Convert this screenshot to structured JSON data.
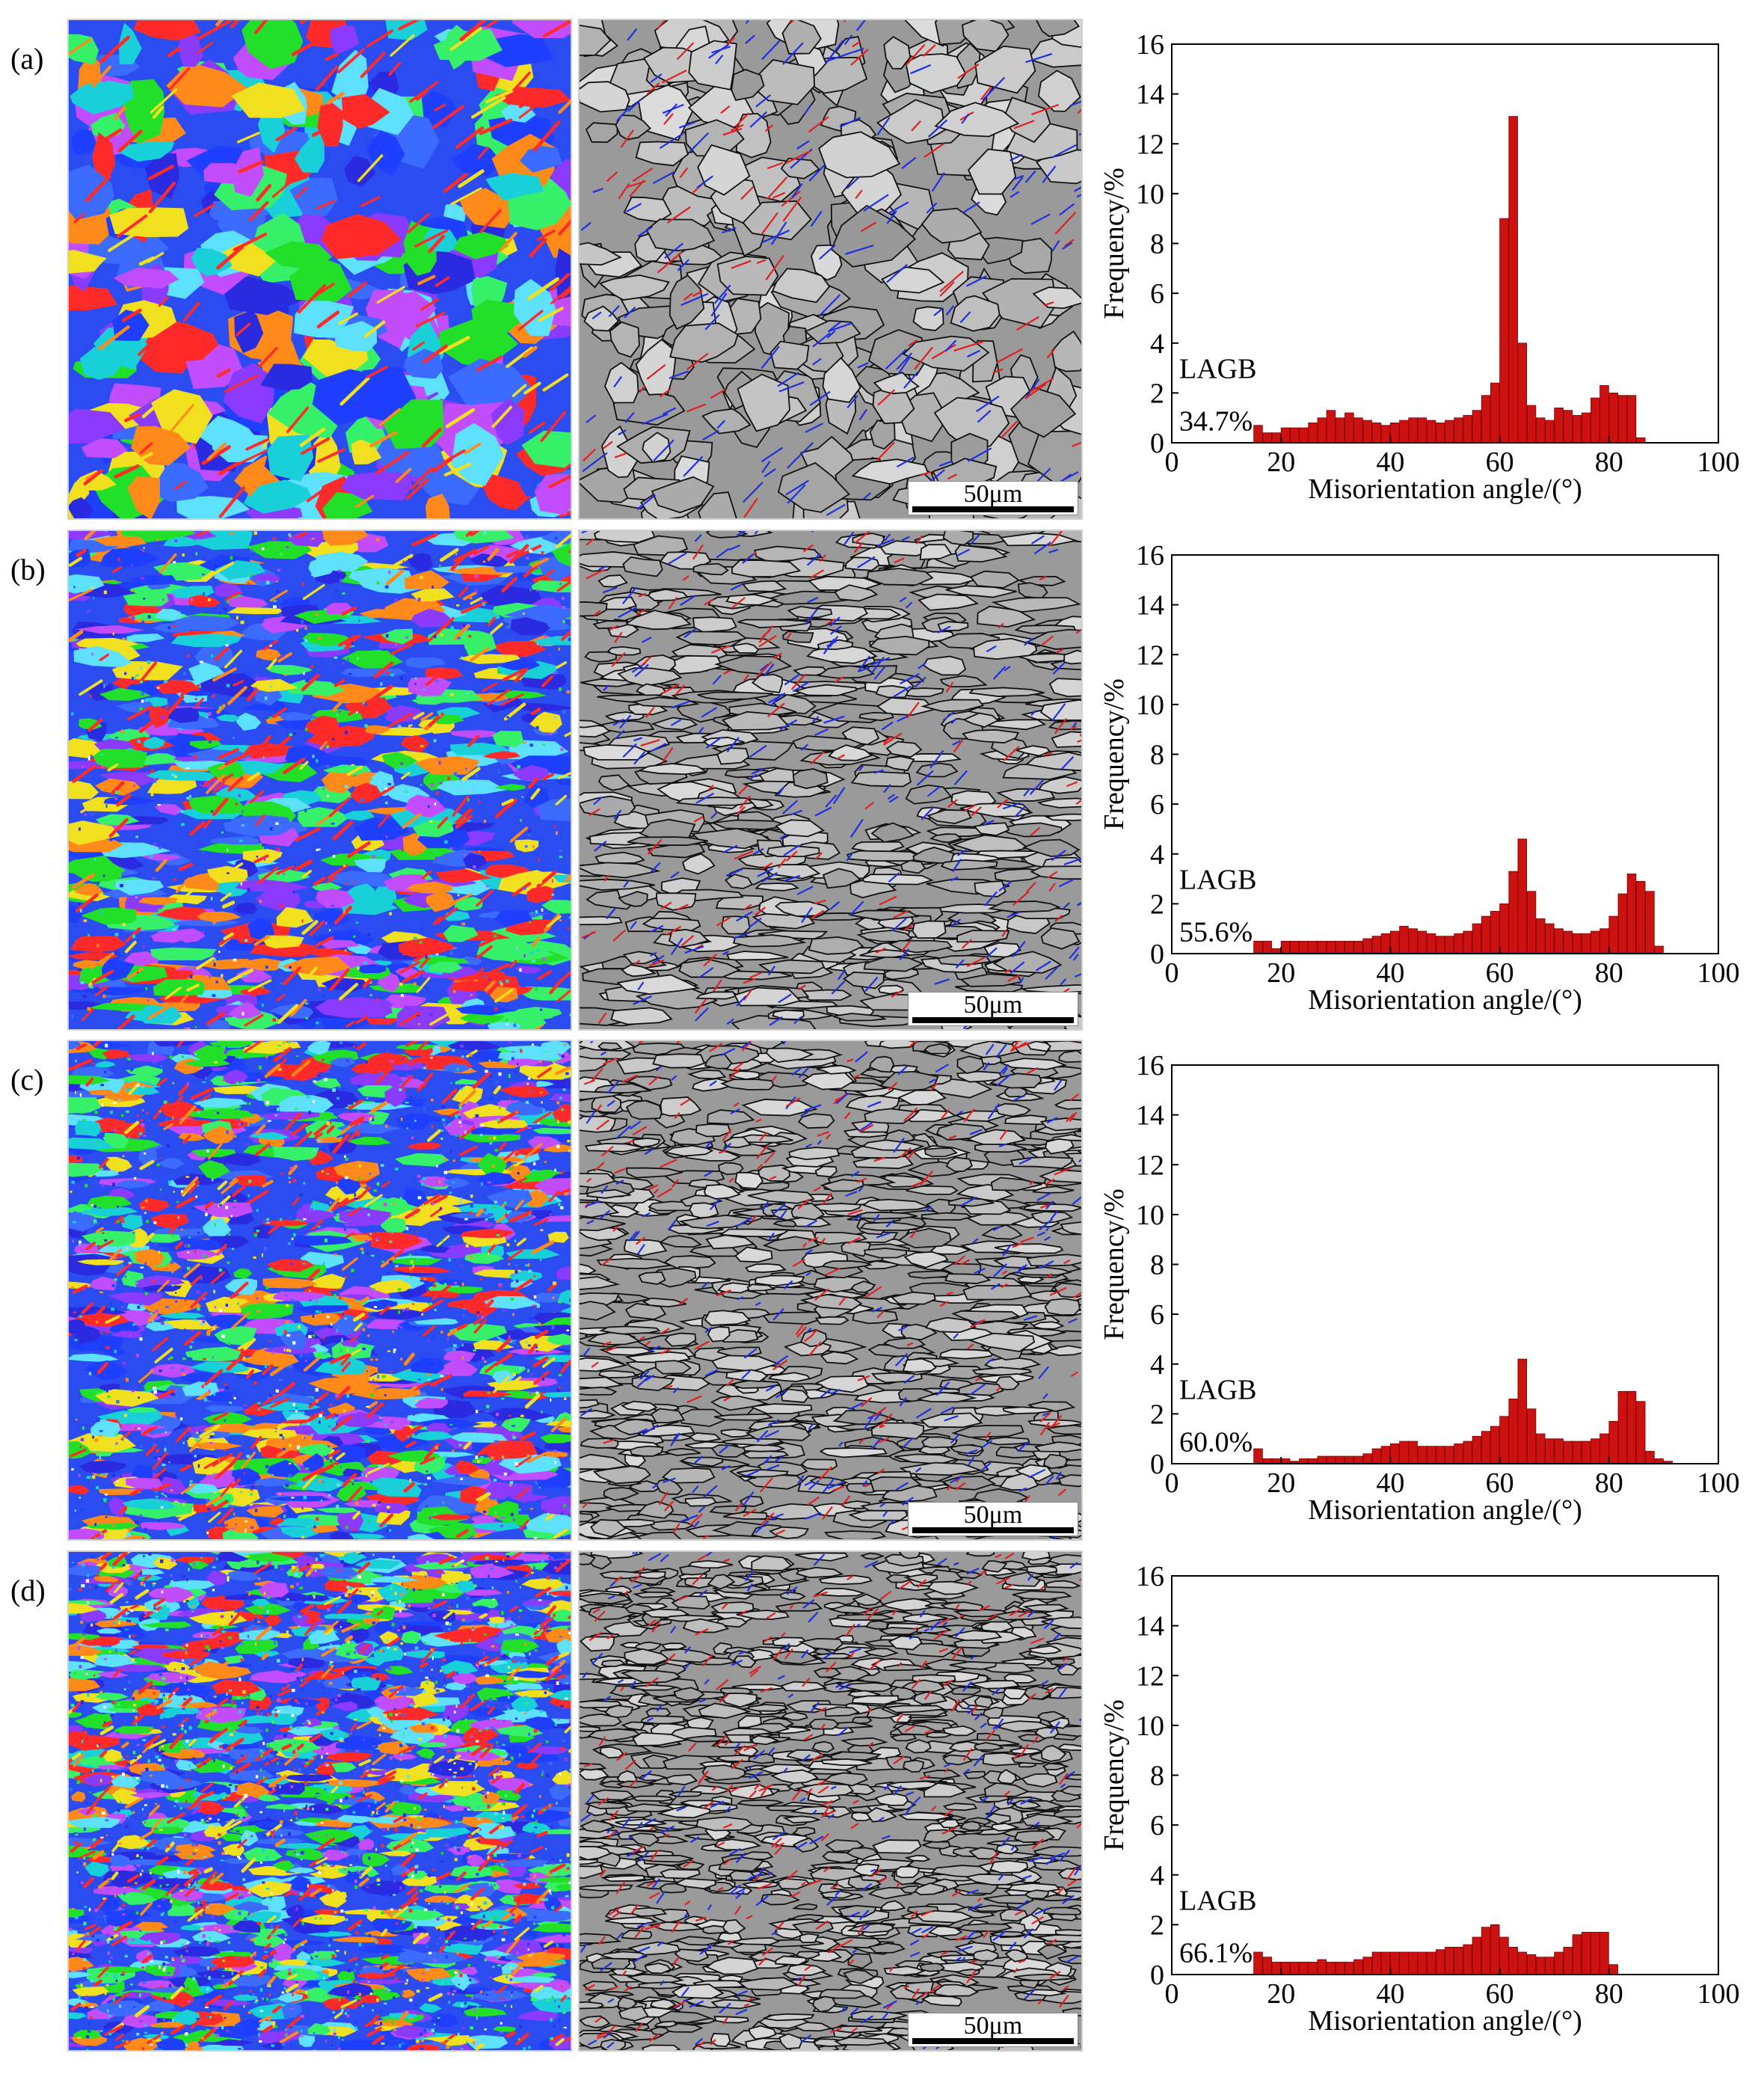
{
  "figure": {
    "panels": [
      {
        "label": "(a)",
        "scale_bar": "50μm",
        "lagb_title": "LAGB",
        "lagb_value": "34.7%",
        "seed": 11,
        "ipf_grain_scale": 1.0,
        "gray_grain_scale": 1.0
      },
      {
        "label": "(b)",
        "scale_bar": "50μm",
        "lagb_title": "LAGB",
        "lagb_value": "55.6%",
        "seed": 23,
        "ipf_grain_scale": 0.7,
        "gray_grain_scale": 0.7
      },
      {
        "label": "(c)",
        "scale_bar": "50μm",
        "lagb_title": "LAGB",
        "lagb_value": "60.0%",
        "seed": 37,
        "ipf_grain_scale": 0.6,
        "gray_grain_scale": 0.6
      },
      {
        "label": "(d)",
        "scale_bar": "50μm",
        "lagb_title": "LAGB",
        "lagb_value": "66.1%",
        "seed": 53,
        "ipf_grain_scale": 0.5,
        "gray_grain_scale": 0.5
      }
    ]
  },
  "colors": {
    "bar_fill": "#cc1111",
    "bar_stroke": "#7a0000",
    "ipf": [
      "#1f3fff",
      "#2a2ae0",
      "#3b6cff",
      "#22e02a",
      "#37f06a",
      "#1ad0d8",
      "#5ee0ff",
      "#8a3bff",
      "#c24dff",
      "#ff2b2b",
      "#ff8a1a",
      "#f0e020",
      "#ffffff"
    ],
    "gb_black": "#111111",
    "gb_blue": "#1f2fe0",
    "gb_red": "#e02020"
  },
  "chart_data": [
    {
      "type": "bar",
      "title": "",
      "xlabel": "Misorientation angle/(°)",
      "ylabel": "Frequency/%",
      "xlim": [
        0,
        100
      ],
      "ylim": [
        0,
        16
      ],
      "xticks": [
        0,
        20,
        40,
        60,
        80,
        100
      ],
      "yticks": [
        0,
        2,
        4,
        6,
        8,
        10,
        12,
        14,
        16
      ],
      "bin_width": 1.67,
      "x": [
        15,
        16.67,
        18.33,
        20,
        21.67,
        23.33,
        25,
        26.67,
        28.33,
        30,
        31.67,
        33.33,
        35,
        36.67,
        38.33,
        40,
        41.67,
        43.33,
        45,
        46.67,
        48.33,
        50,
        51.67,
        53.33,
        55,
        56.67,
        58.33,
        60,
        61.67,
        63.33,
        65,
        66.67,
        68.33,
        70,
        71.67,
        73.33,
        75,
        76.67,
        78.33,
        80,
        81.67,
        83.33,
        85,
        86.67,
        88.33,
        90,
        91.67
      ],
      "values": [
        0.7,
        0.4,
        0.4,
        0.6,
        0.6,
        0.6,
        0.8,
        1.0,
        1.3,
        1.0,
        1.2,
        1.0,
        0.9,
        0.8,
        0.7,
        0.8,
        0.9,
        1.0,
        1.0,
        0.9,
        0.8,
        0.9,
        1.0,
        1.1,
        1.3,
        1.9,
        2.4,
        9.0,
        13.1,
        4.0,
        1.5,
        1.0,
        0.9,
        1.4,
        1.3,
        1.1,
        1.2,
        1.8,
        2.3,
        2.0,
        1.9,
        1.9,
        0.2,
        0,
        0,
        0,
        0
      ]
    },
    {
      "type": "bar",
      "title": "",
      "xlabel": "Misorientation angle/(°)",
      "ylabel": "Frequency/%",
      "xlim": [
        0,
        100
      ],
      "ylim": [
        0,
        16
      ],
      "xticks": [
        0,
        20,
        40,
        60,
        80,
        100
      ],
      "yticks": [
        0,
        2,
        4,
        6,
        8,
        10,
        12,
        14,
        16
      ],
      "bin_width": 1.67,
      "x": [
        15,
        16.67,
        18.33,
        20,
        21.67,
        23.33,
        25,
        26.67,
        28.33,
        30,
        31.67,
        33.33,
        35,
        36.67,
        38.33,
        40,
        41.67,
        43.33,
        45,
        46.67,
        48.33,
        50,
        51.67,
        53.33,
        55,
        56.67,
        58.33,
        60,
        61.67,
        63.33,
        65,
        66.67,
        68.33,
        70,
        71.67,
        73.33,
        75,
        76.67,
        78.33,
        80,
        81.67,
        83.33,
        85,
        86.67,
        88.33,
        90,
        91.67
      ],
      "values": [
        0.5,
        0.5,
        0.2,
        0.5,
        0.5,
        0.5,
        0.5,
        0.5,
        0.5,
        0.5,
        0.5,
        0.5,
        0.6,
        0.7,
        0.8,
        0.9,
        1.1,
        1.0,
        0.9,
        0.8,
        0.7,
        0.7,
        0.8,
        0.9,
        1.2,
        1.5,
        1.7,
        2.0,
        3.3,
        4.6,
        2.5,
        1.4,
        1.2,
        1.0,
        0.9,
        0.8,
        0.8,
        0.9,
        1.0,
        1.5,
        2.4,
        3.2,
        2.9,
        2.5,
        0.3,
        0,
        0
      ]
    },
    {
      "type": "bar",
      "title": "",
      "xlabel": "Misorientation angle/(°)",
      "ylabel": "Frequency/%",
      "xlim": [
        0,
        100
      ],
      "ylim": [
        0,
        16
      ],
      "xticks": [
        0,
        20,
        40,
        60,
        80,
        100
      ],
      "yticks": [
        0,
        2,
        4,
        6,
        8,
        10,
        12,
        14,
        16
      ],
      "bin_width": 1.67,
      "x": [
        15,
        16.67,
        18.33,
        20,
        21.67,
        23.33,
        25,
        26.67,
        28.33,
        30,
        31.67,
        33.33,
        35,
        36.67,
        38.33,
        40,
        41.67,
        43.33,
        45,
        46.67,
        48.33,
        50,
        51.67,
        53.33,
        55,
        56.67,
        58.33,
        60,
        61.67,
        63.33,
        65,
        66.67,
        68.33,
        70,
        71.67,
        73.33,
        75,
        76.67,
        78.33,
        80,
        81.67,
        83.33,
        85,
        86.67,
        88.33,
        90,
        91.67
      ],
      "values": [
        0.6,
        0.2,
        0.2,
        0.2,
        0.1,
        0.2,
        0.2,
        0.3,
        0.3,
        0.3,
        0.3,
        0.3,
        0.4,
        0.6,
        0.7,
        0.8,
        0.9,
        0.9,
        0.7,
        0.7,
        0.7,
        0.7,
        0.8,
        0.9,
        1.1,
        1.3,
        1.5,
        1.9,
        2.6,
        4.2,
        2.2,
        1.2,
        1.0,
        1.0,
        0.9,
        0.9,
        0.9,
        1.0,
        1.2,
        1.7,
        2.9,
        2.9,
        2.5,
        0.5,
        0.2,
        0.1,
        0
      ]
    },
    {
      "type": "bar",
      "title": "",
      "xlabel": "Misorientation angle/(°)",
      "ylabel": "Frequency/%",
      "xlim": [
        0,
        100
      ],
      "ylim": [
        0,
        16
      ],
      "xticks": [
        0,
        20,
        40,
        60,
        80,
        100
      ],
      "yticks": [
        0,
        2,
        4,
        6,
        8,
        10,
        12,
        14,
        16
      ],
      "bin_width": 1.67,
      "x": [
        15,
        16.67,
        18.33,
        20,
        21.67,
        23.33,
        25,
        26.67,
        28.33,
        30,
        31.67,
        33.33,
        35,
        36.67,
        38.33,
        40,
        41.67,
        43.33,
        45,
        46.67,
        48.33,
        50,
        51.67,
        53.33,
        55,
        56.67,
        58.33,
        60,
        61.67,
        63.33,
        65,
        66.67,
        68.33,
        70,
        71.67,
        73.33,
        75,
        76.67,
        78.33,
        80,
        81.67,
        83.33,
        85,
        86.67,
        88.33,
        90,
        91.67
      ],
      "values": [
        0.9,
        0.7,
        0.5,
        0.5,
        0.5,
        0.5,
        0.5,
        0.6,
        0.5,
        0.5,
        0.5,
        0.6,
        0.7,
        0.9,
        0.9,
        0.9,
        0.9,
        0.9,
        0.9,
        0.9,
        1.0,
        1.1,
        1.1,
        1.2,
        1.5,
        1.9,
        2.0,
        1.5,
        1.1,
        0.9,
        0.8,
        0.7,
        0.7,
        0.9,
        1.1,
        1.6,
        1.7,
        1.7,
        1.7,
        0.4,
        0,
        0,
        0,
        0,
        0,
        0,
        0
      ]
    }
  ]
}
